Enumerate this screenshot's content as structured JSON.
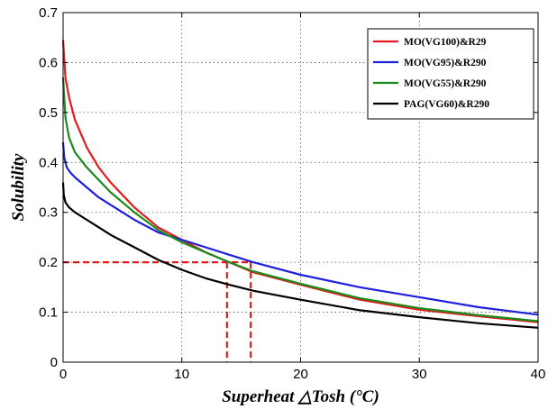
{
  "chart_data": {
    "type": "line",
    "title": "",
    "xlabel": "Superheat △Tosh (°C)",
    "ylabel": "Solubility",
    "xlim": [
      0,
      40
    ],
    "ylim": [
      0,
      0.7
    ],
    "x_ticks": [
      0,
      10,
      20,
      30,
      40
    ],
    "y_ticks": [
      0,
      0.1,
      0.2,
      0.3,
      0.4,
      0.5,
      0.6,
      0.7
    ],
    "x_tick_labels": [
      "0",
      "10",
      "20",
      "30",
      "40"
    ],
    "y_tick_labels": [
      "0",
      "0.1",
      "0.2",
      "0.3",
      "0.4",
      "0.5",
      "0.6",
      "0.7"
    ],
    "grid": true,
    "legend_position": "top-right",
    "series": [
      {
        "name": "MO(VG100)&R29",
        "color": "#e41a1c",
        "x": [
          0,
          0.2,
          0.5,
          1,
          2,
          3,
          4,
          6,
          8,
          10,
          12,
          14,
          16,
          20,
          25,
          30,
          35,
          40
        ],
        "y": [
          0.645,
          0.57,
          0.53,
          0.485,
          0.43,
          0.39,
          0.36,
          0.31,
          0.27,
          0.245,
          0.22,
          0.2,
          0.18,
          0.155,
          0.125,
          0.105,
          0.092,
          0.08
        ]
      },
      {
        "name": "MO(VG95)&R290",
        "color": "#1f1fdc",
        "x": [
          0,
          0.1,
          0.3,
          0.6,
          1,
          2,
          3,
          4,
          6,
          8,
          10,
          12,
          14,
          16,
          20,
          25,
          30,
          35,
          40
        ],
        "y": [
          0.44,
          0.41,
          0.39,
          0.38,
          0.37,
          0.35,
          0.33,
          0.315,
          0.285,
          0.26,
          0.245,
          0.23,
          0.215,
          0.2,
          0.175,
          0.15,
          0.13,
          0.11,
          0.095
        ]
      },
      {
        "name": "MO(VG55)&R290",
        "color": "#1a8a1a",
        "x": [
          0,
          0.2,
          0.5,
          1,
          2,
          3,
          4,
          6,
          8,
          10,
          12,
          14,
          16,
          20,
          25,
          30,
          35,
          40
        ],
        "y": [
          0.57,
          0.49,
          0.45,
          0.42,
          0.39,
          0.365,
          0.34,
          0.3,
          0.265,
          0.24,
          0.22,
          0.2,
          0.182,
          0.157,
          0.128,
          0.108,
          0.094,
          0.082
        ]
      },
      {
        "name": "PAG(VG60)&R290",
        "color": "#000000",
        "x": [
          0,
          0.05,
          0.2,
          0.5,
          1,
          2,
          3,
          4,
          6,
          8,
          10,
          12,
          14,
          16,
          20,
          25,
          30,
          35,
          40
        ],
        "y": [
          0.36,
          0.335,
          0.32,
          0.31,
          0.3,
          0.285,
          0.27,
          0.255,
          0.23,
          0.205,
          0.185,
          0.168,
          0.155,
          0.143,
          0.125,
          0.104,
          0.09,
          0.078,
          0.069
        ]
      }
    ],
    "reference_lines": {
      "color": "#e41a1c",
      "horizontal_y": 0.2,
      "horizontal_x_range": [
        0,
        15.8
      ],
      "vertical_x": [
        13.8,
        15.8
      ]
    }
  }
}
